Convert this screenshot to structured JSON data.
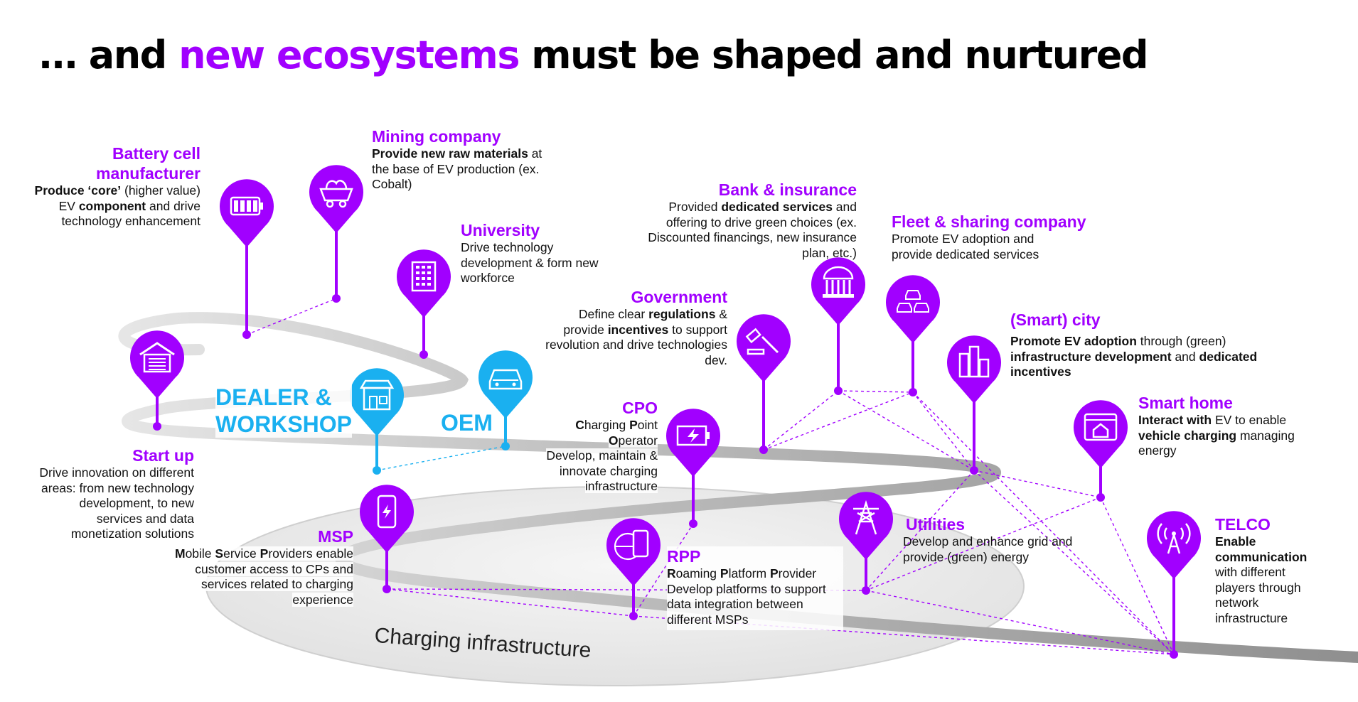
{
  "title": {
    "pre": "… and ",
    "highlight": "new ecosystems",
    "post": " must be shaped and nurtured"
  },
  "colors": {
    "accent": "#a100ff",
    "oem_blue": "#1ab0f0",
    "road": "#b4b4b4",
    "ellipse": "#ececec"
  },
  "road_label": "Charging infrastructure",
  "oem_label": "OEM",
  "dealer_label": [
    "DEALER &",
    "WORKSHOP"
  ],
  "actors": {
    "battery": {
      "icon": "battery-icon",
      "title": [
        "Battery cell",
        "manufacturer"
      ],
      "desc": [
        "Produce ‘core’",
        " (higher value) EV ",
        "component",
        " and drive technology enhancement"
      ]
    },
    "mining": {
      "icon": "minecart-icon",
      "title": "Mining company",
      "desc": [
        "Provide new raw materials",
        " at the base of EV production (ex. Cobalt)"
      ]
    },
    "university": {
      "icon": "building-icon",
      "title": "University",
      "desc": "Drive technology development & form new workforce"
    },
    "startup": {
      "icon": "garage-icon",
      "title": "Start up",
      "desc": "Drive innovation on different areas: from new technology development, to new services and data monetization solutions"
    },
    "bank": {
      "icon": "bank-icon",
      "title": "Bank & insurance",
      "desc": [
        "Provided ",
        "dedicated services",
        " and offering to drive green choices (ex. Discounted financings, new insurance plan, etc.)"
      ]
    },
    "fleet": {
      "icon": "cars-icon",
      "title": "Fleet & sharing company",
      "desc": "Promote EV adoption and provide dedicated services"
    },
    "government": {
      "icon": "gavel-icon",
      "title": "Government",
      "desc": [
        "Define clear ",
        "regulations",
        " & provide ",
        "incentives",
        " to support revolution and  drive technologies dev."
      ]
    },
    "city": {
      "icon": "city-icon",
      "title": "(Smart) city",
      "desc": [
        "Promote EV adoption",
        " through (green) ",
        "infrastructure development",
        " and ",
        "dedicated incentives"
      ]
    },
    "cpo": {
      "icon": "charging-battery-icon",
      "title": "CPO",
      "name_parts": [
        "C",
        "harging ",
        "P",
        "oint ",
        "O",
        "perator"
      ],
      "desc": "Develop, maintain & innovate charging infrastructure"
    },
    "smarthome": {
      "icon": "smart-home-icon",
      "title": "Smart home",
      "desc": [
        "Interact with",
        " EV to enable ",
        "vehicle charging",
        " managing energy"
      ]
    },
    "msp": {
      "icon": "phone-charge-icon",
      "title": "MSP",
      "name_parts": [
        "M",
        "obile ",
        "S",
        "ervice ",
        "P",
        "roviders"
      ],
      "desc": " enable customer access to CPs and services related to charging experience"
    },
    "rpp": {
      "icon": "globe-phone-icon",
      "title": "RPP",
      "name_parts": [
        "R",
        "oaming ",
        "P",
        "latform ",
        "P",
        "rovider"
      ],
      "desc": "Develop platforms to support data integration between different MSPs"
    },
    "utilities": {
      "icon": "pylon-icon",
      "title": "Utilities",
      "desc": "Develop and enhance grid and provide (green) energy"
    },
    "telco": {
      "icon": "antenna-icon",
      "title": "TELCO",
      "desc": [
        "Enable communication",
        " with different players through network infrastructure"
      ]
    },
    "oem": {
      "icon": "car-icon"
    },
    "dealer": {
      "icon": "shop-icon"
    }
  }
}
